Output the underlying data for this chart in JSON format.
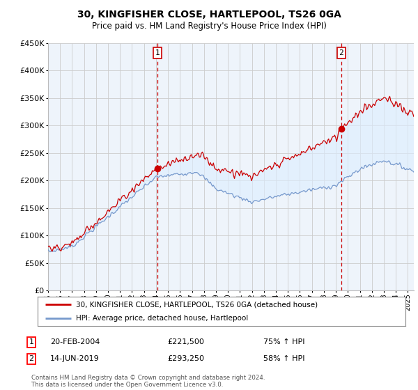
{
  "title": "30, KINGFISHER CLOSE, HARTLEPOOL, TS26 0GA",
  "subtitle": "Price paid vs. HM Land Registry's House Price Index (HPI)",
  "sale1_date": "20-FEB-2004",
  "sale1_price": 221500,
  "sale1_year": 2004.122,
  "sale1_label": "75% ↑ HPI",
  "sale2_date": "14-JUN-2019",
  "sale2_price": 293250,
  "sale2_year": 2019.456,
  "sale2_label": "58% ↑ HPI",
  "legend_property": "30, KINGFISHER CLOSE, HARTLEPOOL, TS26 0GA (detached house)",
  "legend_hpi": "HPI: Average price, detached house, Hartlepool",
  "property_color": "#cc0000",
  "hpi_color": "#7799cc",
  "vline_color": "#cc0000",
  "fill_color": "#ddeeff",
  "footnote": "Contains HM Land Registry data © Crown copyright and database right 2024.\nThis data is licensed under the Open Government Licence v3.0.",
  "background_color": "#ffffff",
  "chart_bg_color": "#eef4fb",
  "grid_color": "#cccccc",
  "xmin": 1995,
  "xmax": 2025.5,
  "ymin": 0,
  "ymax": 450000
}
